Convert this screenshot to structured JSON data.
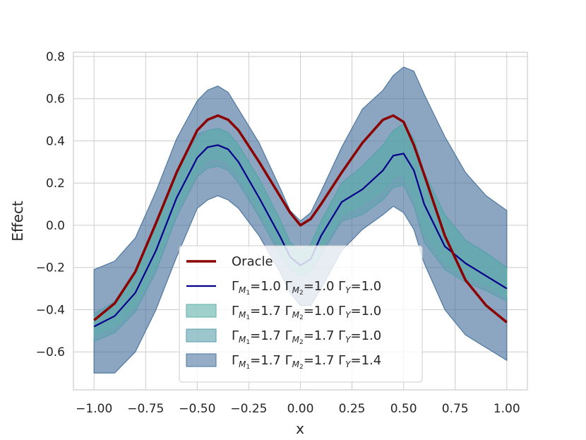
{
  "chart_data": {
    "type": "line",
    "title": "",
    "xlabel": "x",
    "ylabel": "Effect",
    "xlim": [
      -1.1,
      1.1
    ],
    "ylim": [
      -0.78,
      0.82
    ],
    "grid": true,
    "legend_position": "lower-center",
    "x_ticks": [
      -1.0,
      -0.75,
      -0.5,
      -0.25,
      0.0,
      0.25,
      0.5,
      0.75,
      1.0
    ],
    "x_tick_labels": [
      "−1.00",
      "−0.75",
      "−0.50",
      "−0.25",
      "0.00",
      "0.25",
      "0.50",
      "0.75",
      "1.00"
    ],
    "y_ticks": [
      -0.6,
      -0.4,
      -0.2,
      0.0,
      0.2,
      0.4,
      0.6,
      0.8
    ],
    "y_tick_labels": [
      "−0.6",
      "−0.4",
      "−0.2",
      "0.0",
      "0.2",
      "0.4",
      "0.6",
      "0.8"
    ],
    "x": [
      -1.0,
      -0.9,
      -0.8,
      -0.7,
      -0.6,
      -0.5,
      -0.45,
      -0.4,
      -0.35,
      -0.3,
      -0.2,
      -0.1,
      -0.05,
      0.0,
      0.05,
      0.1,
      0.2,
      0.3,
      0.4,
      0.45,
      0.5,
      0.55,
      0.6,
      0.7,
      0.8,
      0.9,
      1.0
    ],
    "series": [
      {
        "name": "Oracle",
        "kind": "line",
        "color": "#8b0000",
        "values": [
          -0.45,
          -0.37,
          -0.22,
          0.01,
          0.25,
          0.45,
          0.5,
          0.52,
          0.5,
          0.45,
          0.3,
          0.14,
          0.06,
          0.0,
          0.03,
          0.1,
          0.25,
          0.39,
          0.5,
          0.52,
          0.49,
          0.38,
          0.24,
          -0.05,
          -0.26,
          -0.38,
          -0.46
        ]
      },
      {
        "name": "ΓM1=1.0 ΓM2=1.0 ΓY=1.0",
        "kind": "line",
        "color": "#00008b",
        "values": [
          -0.48,
          -0.43,
          -0.32,
          -0.12,
          0.13,
          0.32,
          0.37,
          0.38,
          0.36,
          0.3,
          0.13,
          -0.05,
          -0.15,
          -0.19,
          -0.16,
          -0.05,
          0.11,
          0.17,
          0.26,
          0.33,
          0.34,
          0.26,
          0.1,
          -0.1,
          -0.18,
          -0.24,
          -0.3
        ]
      },
      {
        "name": "ΓM1=1.7 ΓM2=1.0 ΓY=1.0",
        "kind": "band",
        "color": "#5fb0a8",
        "upper": [
          -0.44,
          -0.38,
          -0.24,
          -0.02,
          0.24,
          0.4,
          0.44,
          0.45,
          0.43,
          0.37,
          0.21,
          0.02,
          -0.09,
          -0.13,
          -0.1,
          0.01,
          0.19,
          0.27,
          0.37,
          0.44,
          0.47,
          0.4,
          0.24,
          0.04,
          -0.08,
          -0.14,
          -0.21
        ],
        "lower": [
          -0.52,
          -0.48,
          -0.38,
          -0.19,
          0.07,
          0.26,
          0.31,
          0.32,
          0.3,
          0.24,
          0.07,
          -0.1,
          -0.19,
          -0.23,
          -0.21,
          -0.11,
          0.05,
          0.1,
          0.17,
          0.23,
          0.24,
          0.14,
          -0.03,
          -0.18,
          -0.24,
          -0.28,
          -0.34
        ]
      },
      {
        "name": "ΓM1=1.7 ΓM2=1.7 ΓY=1.0",
        "kind": "band",
        "color": "#5a9fad",
        "upper": [
          -0.42,
          -0.36,
          -0.22,
          0.0,
          0.26,
          0.43,
          0.45,
          0.46,
          0.44,
          0.38,
          0.22,
          0.03,
          -0.08,
          -0.12,
          -0.09,
          0.02,
          0.2,
          0.28,
          0.38,
          0.45,
          0.48,
          0.41,
          0.25,
          0.05,
          -0.07,
          -0.13,
          -0.2
        ],
        "lower": [
          -0.55,
          -0.51,
          -0.41,
          -0.22,
          0.04,
          0.23,
          0.27,
          0.28,
          0.26,
          0.2,
          0.04,
          -0.14,
          -0.21,
          -0.24,
          -0.22,
          -0.14,
          0.02,
          0.05,
          0.12,
          0.18,
          0.19,
          0.09,
          -0.08,
          -0.21,
          -0.27,
          -0.31,
          -0.36
        ]
      },
      {
        "name": "ΓM1=1.7 ΓM2=1.7 ΓY=1.4",
        "kind": "band",
        "color": "#4e77a1",
        "upper": [
          -0.21,
          -0.17,
          -0.06,
          0.16,
          0.41,
          0.59,
          0.64,
          0.66,
          0.63,
          0.55,
          0.39,
          0.18,
          0.07,
          0.02,
          0.06,
          0.16,
          0.37,
          0.55,
          0.64,
          0.71,
          0.75,
          0.73,
          0.62,
          0.42,
          0.25,
          0.14,
          0.07
        ],
        "lower": [
          -0.7,
          -0.7,
          -0.6,
          -0.4,
          -0.15,
          0.08,
          0.12,
          0.14,
          0.12,
          0.08,
          -0.05,
          -0.22,
          -0.32,
          -0.38,
          -0.38,
          -0.3,
          -0.12,
          -0.02,
          0.05,
          0.09,
          0.06,
          -0.02,
          -0.18,
          -0.4,
          -0.52,
          -0.58,
          -0.64
        ]
      }
    ],
    "legend_entries": [
      {
        "label": "Oracle",
        "sub": [
          "",
          "",
          ""
        ],
        "kind": "line",
        "color": "#8b0000"
      },
      {
        "label": "",
        "gammas": [
          "1.0",
          "1.0",
          "1.0"
        ],
        "kind": "line",
        "color": "#00008b"
      },
      {
        "label": "",
        "gammas": [
          "1.7",
          "1.0",
          "1.0"
        ],
        "kind": "band",
        "color": "#5fb0a8"
      },
      {
        "label": "",
        "gammas": [
          "1.7",
          "1.7",
          "1.0"
        ],
        "kind": "band",
        "color": "#5a9fad"
      },
      {
        "label": "",
        "gammas": [
          "1.7",
          "1.7",
          "1.4"
        ],
        "kind": "band",
        "color": "#4e77a1"
      }
    ]
  }
}
